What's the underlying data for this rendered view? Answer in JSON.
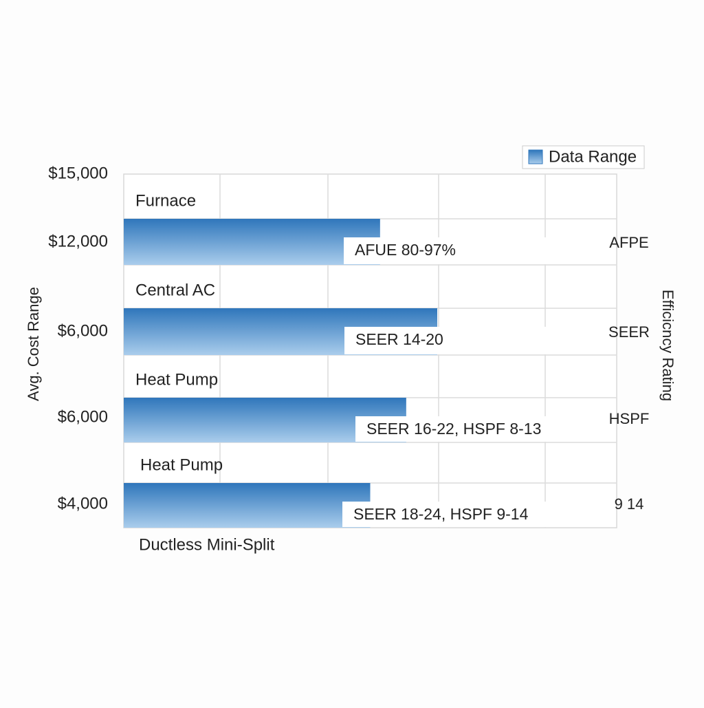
{
  "chart_data": {
    "type": "bar",
    "orientation": "horizontal",
    "y_label": "Avg. Cost Range",
    "y2_label": "Efficicncy Rating",
    "cost_labels": [
      "$15,000",
      "$12,000",
      "$6,000",
      "$6,000",
      "$4,000"
    ],
    "categories": [
      "Furnace",
      "Central AC",
      "Heat Pump",
      "Heat Pump"
    ],
    "footer_label": "Ductless Mini-Split",
    "series": [
      {
        "name": "Data Range",
        "color": "#2f76bb",
        "values": [
          52,
          63.6,
          57.3,
          50
        ],
        "bar_labels": [
          "AFUE 80-97%",
          "SEER 14-20",
          "SEER 16-22, HSPF 8-13",
          "SEER 18-24, HSPF 9-14"
        ]
      }
    ],
    "rating_labels": [
      "AFPE",
      "SEER",
      "HSPF",
      "9 14"
    ],
    "xlim": [
      0,
      100
    ],
    "grid": true
  }
}
